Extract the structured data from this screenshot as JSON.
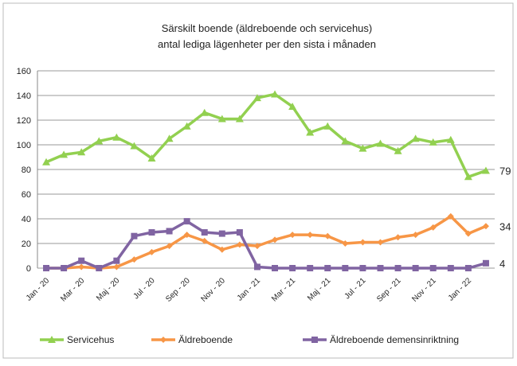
{
  "chart_data": {
    "type": "line",
    "title": "Särskilt boende (äldreboende och servicehus)",
    "subtitle": "antal lediga lägenheter per den sista i månaden",
    "categories": [
      "Jan - 20",
      null,
      "Mar - 20",
      null,
      "Maj - 20",
      null,
      "Jul - 20",
      null,
      "Sep - 20",
      null,
      "Nov - 20",
      null,
      "Jan - 21",
      null,
      "Mar - 21",
      null,
      "Maj - 21",
      null,
      "Jul - 21",
      null,
      "Sep - 21",
      null,
      "Nov - 21",
      null,
      "Jan - 22",
      null
    ],
    "series": [
      {
        "name": "Servicehus",
        "color": "#92d050",
        "marker": "triangle",
        "values": [
          86,
          92,
          94,
          103,
          106,
          99,
          89,
          105,
          115,
          126,
          121,
          121,
          138,
          141,
          131,
          110,
          115,
          103,
          97,
          101,
          95,
          105,
          102,
          104,
          74,
          79
        ]
      },
      {
        "name": "Äldreboende",
        "color": "#f79646",
        "marker": "diamond",
        "values": [
          0,
          0,
          1,
          0,
          1,
          7,
          13,
          18,
          27,
          22,
          15,
          19,
          18,
          23,
          27,
          27,
          26,
          20,
          21,
          21,
          25,
          27,
          33,
          42,
          28,
          34
        ]
      },
      {
        "name": "Äldreboende demensinriktning",
        "color": "#8064a2",
        "marker": "square",
        "values": [
          0,
          0,
          6,
          0,
          6,
          26,
          29,
          30,
          38,
          29,
          28,
          29,
          1,
          0,
          0,
          0,
          0,
          0,
          0,
          0,
          0,
          0,
          0,
          0,
          0,
          4
        ]
      }
    ],
    "ylim": [
      0,
      160
    ],
    "yticks": [
      0,
      20,
      40,
      60,
      80,
      100,
      120,
      140,
      160
    ],
    "grid": true,
    "legend": "bottom"
  }
}
